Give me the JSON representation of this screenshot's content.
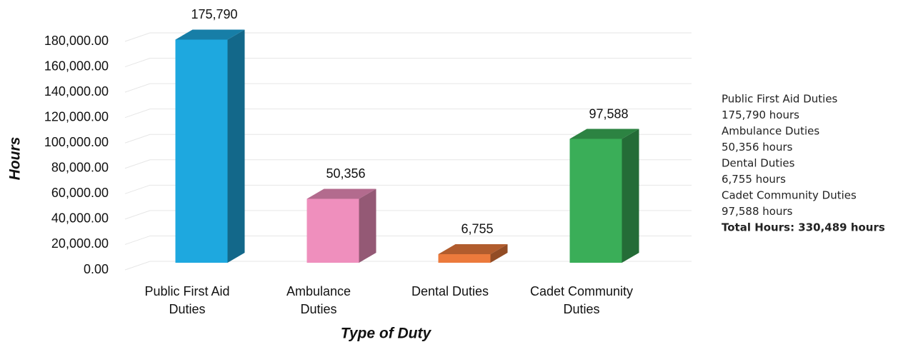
{
  "chart_data": {
    "type": "bar3d",
    "categories": [
      "Public First Aid Duties",
      "Ambulance Duties",
      "Dental Duties",
      "Cadet Community Duties"
    ],
    "values": [
      175790,
      50356,
      6755,
      97588
    ],
    "value_labels": [
      "175,790",
      "50,356",
      "6,755",
      "97,588"
    ],
    "colors": [
      "#1ea8df",
      "#ef8fbd",
      "#ec7a3c",
      "#3aae58"
    ],
    "ylim": [
      0,
      180000
    ],
    "yticks": [
      {
        "value": 0,
        "label": "0.00"
      },
      {
        "value": 20000,
        "label": "20,000.00"
      },
      {
        "value": 40000,
        "label": "40,000.00"
      },
      {
        "value": 60000,
        "label": "60,000.00"
      },
      {
        "value": 80000,
        "label": "80,000.00"
      },
      {
        "value": 100000,
        "label": "100,000.00"
      },
      {
        "value": 120000,
        "label": "120,000.00"
      },
      {
        "value": 140000,
        "label": "140,000.00"
      },
      {
        "value": 160000,
        "label": "160,000.00"
      },
      {
        "value": 180000,
        "label": "180,000.00"
      }
    ],
    "grid": true,
    "y_label": "Hours",
    "x_label": "Type of Duty",
    "notes": [
      "Public First Aid Duties",
      "175,790 hours",
      "Ambulance Duties",
      "50,356 hours",
      "Dental Duties",
      "6,755 hours",
      "Cadet Community Duties",
      "97,588 hours"
    ],
    "total": "Total Hours: 330,489 hours"
  }
}
